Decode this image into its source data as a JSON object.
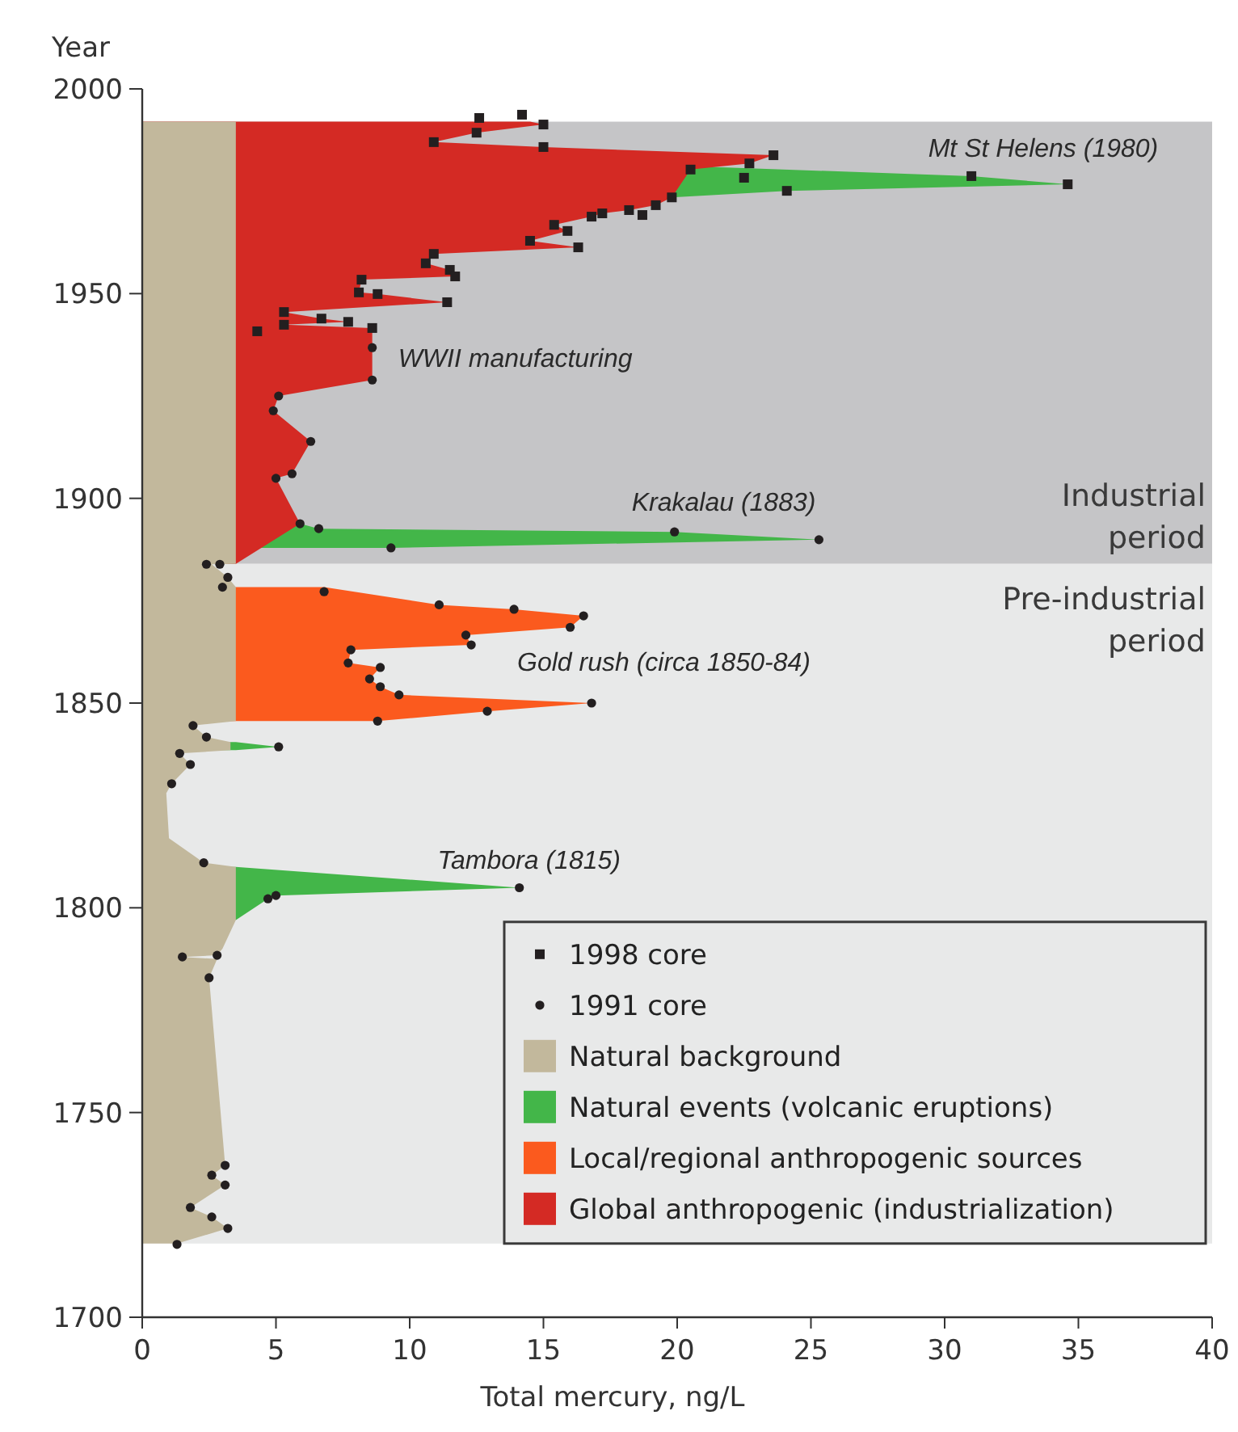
{
  "chart_data": {
    "type": "area",
    "orientation": "horizontal",
    "xlabel": "Total mercury, ng/L",
    "ylabel": "Year",
    "xlim": [
      0,
      40
    ],
    "xticks": [
      0,
      5,
      10,
      15,
      20,
      25,
      30,
      35,
      40
    ],
    "ylim": [
      1700,
      2000
    ],
    "yticks": [
      1700,
      1750,
      1800,
      1850,
      1900,
      1950,
      2000
    ],
    "legend": "bottom right",
    "bands": [
      {
        "axis": "y",
        "from": 1884,
        "to": 1992,
        "label": "Industrial period",
        "color": "#c5c5c7"
      },
      {
        "axis": "y",
        "from": 1718,
        "to": 1884,
        "label": "Pre-industrial period",
        "color": "#e8e9e9"
      }
    ],
    "annotations": [
      {
        "text": "Mt St Helens (1980)",
        "x": 34.6,
        "y": 1976.7
      },
      {
        "text": "WWII manufacturing",
        "x": 8.6,
        "y": 1936.8
      },
      {
        "text": "Krakalau (1883)",
        "x": 25.3,
        "y": 1889.9
      },
      {
        "text": "Gold rush (circa 1850-84)",
        "x": 16.8,
        "y": 1850
      },
      {
        "text": "Tambora (1815)",
        "x": 14.1,
        "y": 1804.9
      }
    ],
    "series": [
      {
        "name": "1998 core",
        "type": "scatter",
        "marker": "square",
        "color": "#231f20",
        "x": [
          1992.9,
          1993.7,
          1991.3,
          1989.3,
          1987,
          1985.8,
          1983.8,
          1981.8,
          1980.3,
          1978.3,
          1978.7,
          1976.7,
          1975.1,
          1973.5,
          1971.6,
          1969.2,
          1970.4,
          1969.6,
          1968.8,
          1965.3,
          1966.8,
          1961.3,
          1962.9,
          1959.7,
          1957.4,
          1955.8,
          1954.2,
          1953.4,
          1950.3,
          1949.9,
          1947.9,
          1945.5,
          1942.4,
          1940.8,
          1943.9,
          1943.1,
          1941.6
        ],
        "values": [
          12.6,
          14.2,
          15.0,
          12.5,
          10.9,
          15.0,
          23.6,
          22.7,
          20.5,
          22.5,
          31.0,
          34.6,
          24.1,
          19.8,
          19.2,
          18.7,
          18.2,
          17.2,
          16.8,
          15.9,
          15.4,
          16.3,
          14.5,
          10.9,
          10.6,
          11.5,
          11.7,
          8.2,
          8.1,
          8.8,
          11.4,
          5.3,
          5.3,
          4.3,
          6.7,
          7.7,
          8.6
        ]
      },
      {
        "name": "1991 core",
        "type": "scatter",
        "marker": "circle",
        "color": "#231f20",
        "x": [
          1936.8,
          1928.9,
          1925,
          1921.4,
          1913.9,
          1906,
          1904.9,
          1893.8,
          1892.6,
          1891.8,
          1889.9,
          1887.9,
          1883.9,
          1883.9,
          1880.7,
          1878.3,
          1877.2,
          1874,
          1872.9,
          1871.3,
          1868.5,
          1866.6,
          1864.2,
          1863,
          1859.8,
          1858.7,
          1855.9,
          1854,
          1852,
          1850,
          1848,
          1845.6,
          1844.5,
          1841.7,
          1839.3,
          1837.7,
          1835,
          1830.3,
          1811,
          1804.9,
          1803,
          1802.2,
          1788,
          1788.4,
          1782.9,
          1737.1,
          1734.7,
          1732.3,
          1726.8,
          1724.5,
          1721.7,
          1717.8
        ],
        "values": [
          8.6,
          8.6,
          5.1,
          4.9,
          6.3,
          5.6,
          5.0,
          5.9,
          6.6,
          19.9,
          25.3,
          9.3,
          2.4,
          2.9,
          3.2,
          3.0,
          6.8,
          11.1,
          13.9,
          16.5,
          16.0,
          12.1,
          12.3,
          7.8,
          7.7,
          8.9,
          8.5,
          8.9,
          9.6,
          16.8,
          12.9,
          8.8,
          1.9,
          2.4,
          5.1,
          1.4,
          1.8,
          1.1,
          2.3,
          14.1,
          5.0,
          4.7,
          1.5,
          2.8,
          2.5,
          3.1,
          2.6,
          3.1,
          1.8,
          2.6,
          3.2,
          1.3
        ]
      },
      {
        "name": "Natural background",
        "type": "area",
        "color": "#c2b89c",
        "x": [
          1992,
          1884,
          1883.9,
          1880.7,
          1878.3,
          1845.6,
          1844.5,
          1841.7,
          1840.5,
          1838.5,
          1837.7,
          1835,
          1830.3,
          1828,
          1817,
          1811,
          1810,
          1797,
          1790,
          1788.4,
          1788,
          1787.5,
          1782.9,
          1760,
          1737.1,
          1734.7,
          1732.3,
          1726.8,
          1724.5,
          1721.7,
          1718
        ],
        "values": [
          3.5,
          3.5,
          2.6,
          3.2,
          3.5,
          3.5,
          1.9,
          2.4,
          3.3,
          3.3,
          1.4,
          1.8,
          1.1,
          0.9,
          1.0,
          2.3,
          3.5,
          3.5,
          3.0,
          2.8,
          1.5,
          2.8,
          2.5,
          2.8,
          3.1,
          2.6,
          3.1,
          1.8,
          2.6,
          3.2,
          1.3
        ]
      },
      {
        "name": "Natural events (volcanic eruptions)",
        "type": "area",
        "color": "#43b649",
        "x": [
          1981,
          1978.7,
          1976.7,
          1975.1,
          1973.5,
          1930,
          1887.9,
          1889.9,
          1891.8,
          1892.6,
          1893.8,
          1860,
          1840.5,
          1839.3,
          1838.5,
          1820,
          1810,
          1804.9,
          1803,
          1802.2,
          1797
        ],
        "values": [
          21.0,
          31.0,
          34.6,
          24.1,
          19.8,
          null,
          9.3,
          25.3,
          19.9,
          6.6,
          5.9,
          null,
          3.5,
          5.1,
          3.5,
          null,
          3.5,
          14.1,
          5.0,
          4.7,
          3.5
        ]
      },
      {
        "name": "Local/regional anthropogenic sources",
        "type": "area",
        "color": "#fb5a1e",
        "x": [
          1878.3,
          1874,
          1872.9,
          1871.3,
          1868.5,
          1866.6,
          1864.2,
          1863,
          1859.8,
          1858.7,
          1855.9,
          1854,
          1852,
          1850,
          1848,
          1845.6
        ],
        "values": [
          6.8,
          11.1,
          13.9,
          16.5,
          16.0,
          12.1,
          12.3,
          7.8,
          7.7,
          8.9,
          8.5,
          8.9,
          9.6,
          16.8,
          12.9,
          8.8
        ]
      },
      {
        "name": "Global anthropogenic (industrialization)",
        "type": "area",
        "color": "#d42a24",
        "x": [
          1992,
          1991.3,
          1989.3,
          1987,
          1985.8,
          1983.8,
          1981.8,
          1980.3,
          1973.5,
          1971.6,
          1970.4,
          1969.6,
          1968.8,
          1966.8,
          1965.3,
          1962.9,
          1961.3,
          1959.7,
          1957.4,
          1955.8,
          1954.2,
          1953.4,
          1950.3,
          1949.9,
          1947.9,
          1945.5,
          1943.9,
          1943.1,
          1942.4,
          1941.6,
          1936.8,
          1928.9,
          1925,
          1921.4,
          1913.9,
          1906,
          1904.9,
          1893.8,
          1884
        ],
        "values": [
          14.5,
          15.0,
          12.5,
          10.9,
          15.0,
          23.6,
          22.7,
          20.5,
          19.8,
          19.2,
          18.2,
          17.2,
          16.8,
          15.4,
          15.9,
          14.5,
          16.3,
          10.9,
          10.6,
          11.5,
          11.7,
          8.2,
          8.1,
          8.8,
          11.4,
          5.3,
          6.7,
          7.7,
          5.3,
          8.6,
          8.6,
          8.6,
          5.1,
          4.9,
          6.3,
          5.6,
          5.0,
          5.9,
          3.5
        ]
      }
    ]
  }
}
